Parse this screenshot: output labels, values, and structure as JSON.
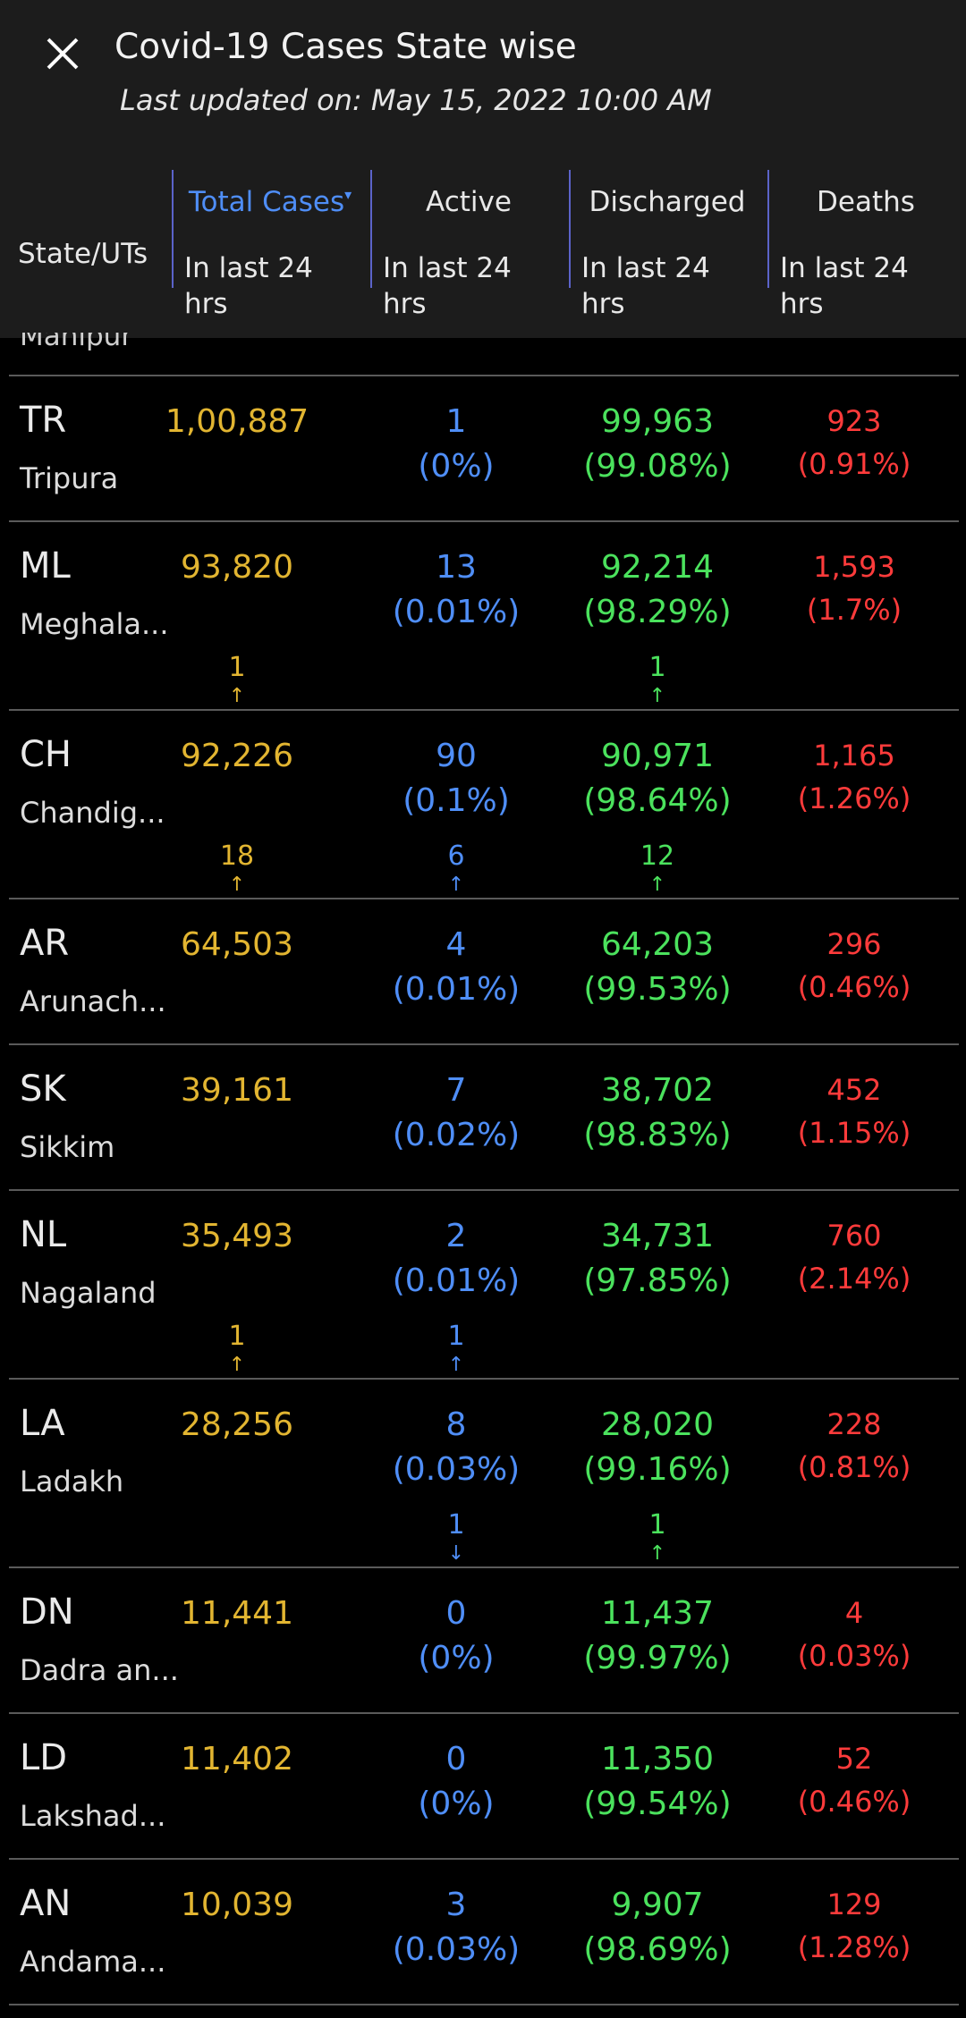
{
  "header": {
    "title": "Covid-19 Cases State wise",
    "subtitle": "Last updated on: May 15, 2022 10:00 AM"
  },
  "columns": {
    "state": "State/UTs",
    "total": "Total Cases",
    "active": "Active",
    "discharged": "Discharged",
    "deaths": "Deaths",
    "sub": "In last 24 hrs"
  },
  "partial_row": "Manipur",
  "rows": [
    {
      "code": "TR",
      "name": "Tripura",
      "total": "1,00,887",
      "active": "1",
      "active_pct": "(0%)",
      "disch": "99,963",
      "disch_pct": "(99.08%)",
      "death": "923",
      "death_pct": "(0.91%)",
      "d_total": "",
      "d_active": "",
      "d_disch": ""
    },
    {
      "code": "ML",
      "name": "Meghala...",
      "total": "93,820",
      "active": "13",
      "active_pct": "(0.01%)",
      "disch": "92,214",
      "disch_pct": "(98.29%)",
      "death": "1,593",
      "death_pct": "(1.7%)",
      "d_total": "1",
      "d_active": "",
      "d_disch": "1"
    },
    {
      "code": "CH",
      "name": "Chandig...",
      "total": "92,226",
      "active": "90",
      "active_pct": "(0.1%)",
      "disch": "90,971",
      "disch_pct": "(98.64%)",
      "death": "1,165",
      "death_pct": "(1.26%)",
      "d_total": "18",
      "d_active": "6",
      "d_disch": "12"
    },
    {
      "code": "AR",
      "name": "Arunach...",
      "total": "64,503",
      "active": "4",
      "active_pct": "(0.01%)",
      "disch": "64,203",
      "disch_pct": "(99.53%)",
      "death": "296",
      "death_pct": "(0.46%)",
      "d_total": "",
      "d_active": "",
      "d_disch": ""
    },
    {
      "code": "SK",
      "name": "Sikkim",
      "total": "39,161",
      "active": "7",
      "active_pct": "(0.02%)",
      "disch": "38,702",
      "disch_pct": "(98.83%)",
      "death": "452",
      "death_pct": "(1.15%)",
      "d_total": "",
      "d_active": "",
      "d_disch": ""
    },
    {
      "code": "NL",
      "name": "Nagaland",
      "total": "35,493",
      "active": "2",
      "active_pct": "(0.01%)",
      "disch": "34,731",
      "disch_pct": "(97.85%)",
      "death": "760",
      "death_pct": "(2.14%)",
      "d_total": "1",
      "d_active": "1",
      "d_disch": ""
    },
    {
      "code": "LA",
      "name": "Ladakh",
      "total": "28,256",
      "active": "8",
      "active_pct": "(0.03%)",
      "disch": "28,020",
      "disch_pct": "(99.16%)",
      "death": "228",
      "death_pct": "(0.81%)",
      "d_total": "",
      "d_active": "1",
      "d_active_dir": "down",
      "d_disch": "1"
    },
    {
      "code": "DN",
      "name": "Dadra an...",
      "total": "11,441",
      "active": "0",
      "active_pct": "(0%)",
      "disch": "11,437",
      "disch_pct": "(99.97%)",
      "death": "4",
      "death_pct": "(0.03%)",
      "d_total": "",
      "d_active": "",
      "d_disch": ""
    },
    {
      "code": "LD",
      "name": "Lakshad...",
      "total": "11,402",
      "active": "0",
      "active_pct": "(0%)",
      "disch": "11,350",
      "disch_pct": "(99.54%)",
      "death": "52",
      "death_pct": "(0.46%)",
      "d_total": "",
      "d_active": "",
      "d_disch": ""
    },
    {
      "code": "AN",
      "name": "Andama...",
      "total": "10,039",
      "active": "3",
      "active_pct": "(0.03%)",
      "disch": "9,907",
      "disch_pct": "(98.69%)",
      "death": "129",
      "death_pct": "(1.28%)",
      "d_total": "",
      "d_active": "",
      "d_disch": ""
    }
  ],
  "colors": {
    "total": "#e2b531",
    "active": "#4f8ef7",
    "discharged": "#4be25d",
    "deaths": "#ff3b3b"
  }
}
